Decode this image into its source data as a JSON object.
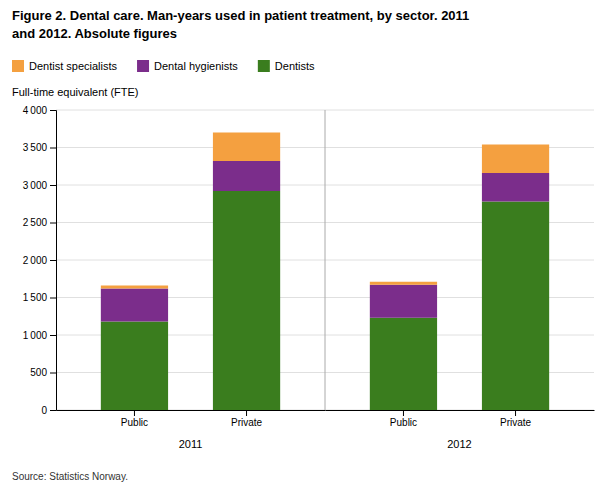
{
  "chart_data": {
    "type": "bar",
    "stacked": true,
    "title": [
      "Figure 2. Dental care. Man-years used in patient treatment, by sector. 2011",
      "and 2012. Absolute figures"
    ],
    "y_label": "Full-time equivalent (FTE)",
    "source": "Source: Statistics Norway.",
    "categories": [
      "Public",
      "Private",
      "Public",
      "Private"
    ],
    "groups": [
      "2011",
      "2011",
      "2012",
      "2012"
    ],
    "series": [
      {
        "name": "Dentists",
        "color": "#3a7d1e",
        "values": [
          1180,
          2920,
          1230,
          2780
        ]
      },
      {
        "name": "Dental hygienists",
        "color": "#7b2d8b",
        "values": [
          440,
          400,
          440,
          380
        ]
      },
      {
        "name": "Dentist specialists",
        "color": "#f4a040",
        "values": [
          40,
          380,
          40,
          380
        ]
      }
    ],
    "ylim": [
      0,
      4000
    ],
    "yticks": [
      0,
      500,
      {
        "value": 1000,
        "label": "1 000"
      },
      {
        "value": 1500,
        "label": "1 500"
      },
      {
        "value": 2000,
        "label": "2 000"
      },
      {
        "value": 2500,
        "label": "2 500"
      },
      {
        "value": 3000,
        "label": "3 000"
      },
      {
        "value": 3500,
        "label": "3 500"
      },
      {
        "value": 4000,
        "label": "4 000"
      }
    ],
    "grid": true,
    "legend": "top"
  }
}
